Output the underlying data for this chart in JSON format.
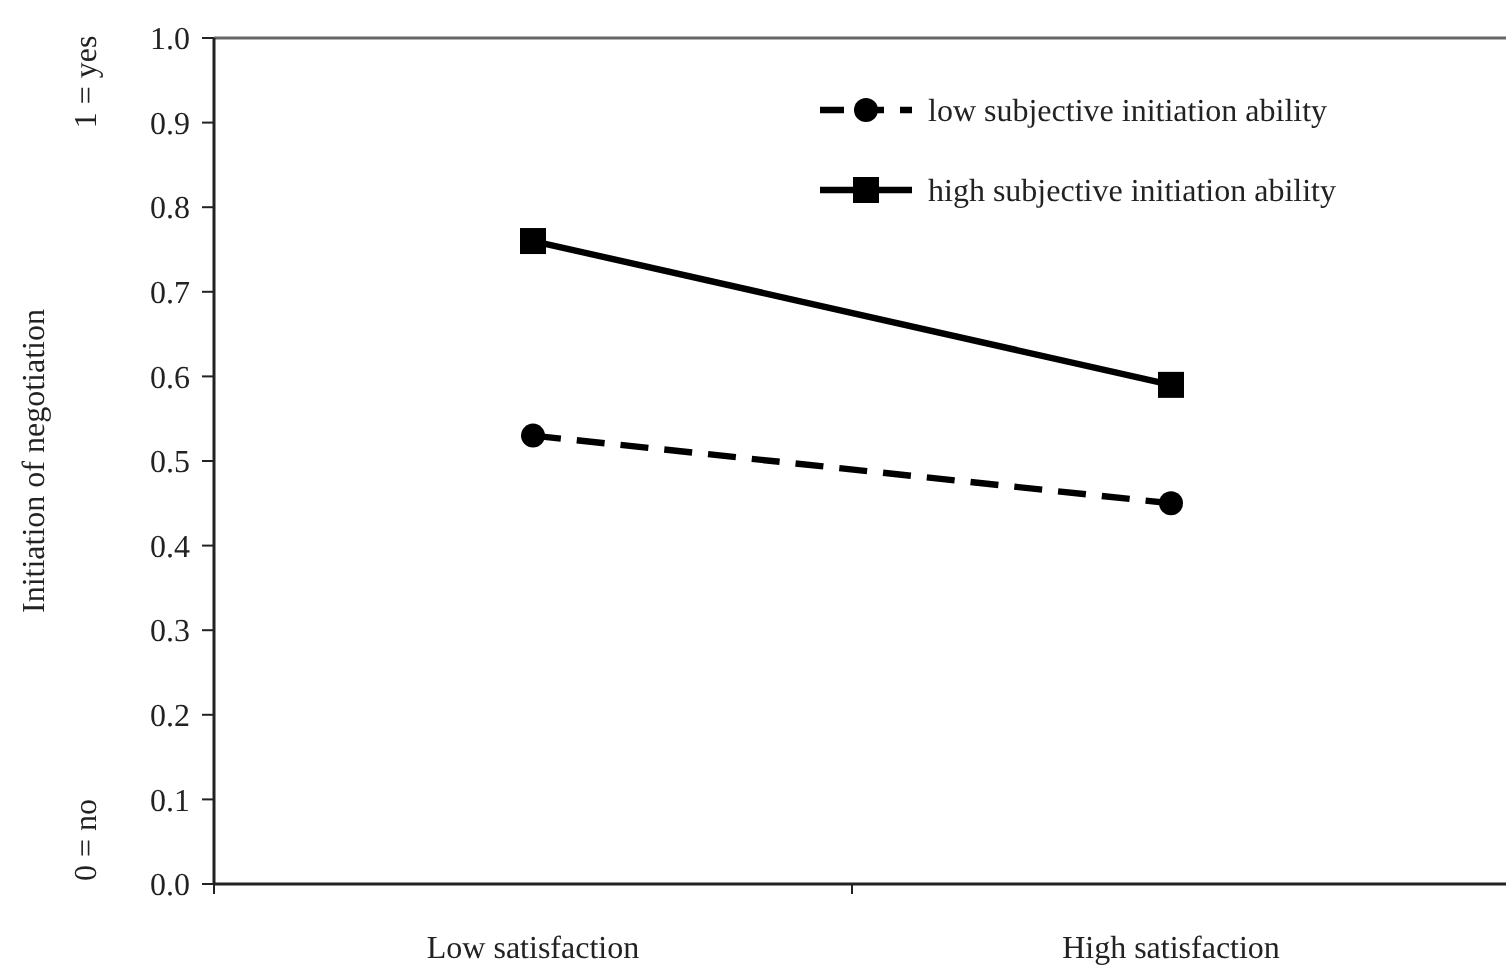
{
  "chart_data": {
    "type": "line",
    "ylabel": "Initiation of negotiation",
    "categories": [
      "Low satisfaction",
      "High satisfaction"
    ],
    "series": [
      {
        "name": "low subjective initiation ability",
        "color": "#000000",
        "values": [
          0.53,
          0.45
        ],
        "marker": "circle",
        "line_style": "dashed"
      },
      {
        "name": "high subjective initiation ability",
        "color": "#000000",
        "values": [
          0.76,
          0.59
        ],
        "marker": "square",
        "line_style": "solid"
      }
    ],
    "ylim": [
      0,
      1
    ],
    "yticks": [
      {
        "value": 0,
        "label": "0.0"
      },
      0.1,
      0.2,
      0.3,
      0.4,
      0.5,
      0.6,
      0.7,
      0.8,
      0.9,
      {
        "value": 1,
        "label": "1.0"
      }
    ],
    "annotations": [
      "1 = yes",
      "0 = no"
    ],
    "legend": "top right",
    "grid": false
  }
}
